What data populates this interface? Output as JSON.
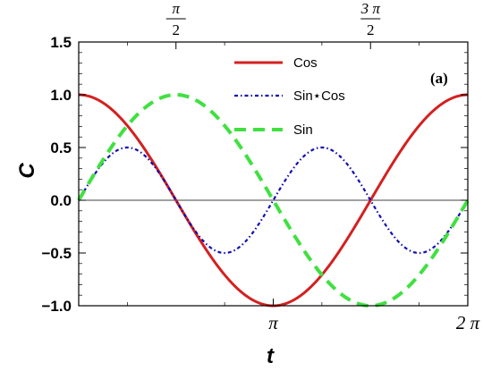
{
  "chart_data": {
    "type": "line",
    "xlabel": "t",
    "ylabel": "C",
    "annotation": "(a)",
    "xlim": [
      0,
      6.2832
    ],
    "ylim": [
      -1.0,
      1.5
    ],
    "yticks": [
      {
        "value": -1.0,
        "label": "−1.0"
      },
      {
        "value": -0.5,
        "label": "−0.5"
      },
      {
        "value": 0.0,
        "label": "0.0"
      },
      {
        "value": 0.5,
        "label": "0.5"
      },
      {
        "value": 1.0,
        "label": "1.0"
      },
      {
        "value": 1.5,
        "label": "1.5"
      }
    ],
    "xticks_bottom": [
      {
        "value": 3.1416,
        "label": "π"
      },
      {
        "value": 6.2832,
        "label": "2 π"
      }
    ],
    "xticks_top": [
      {
        "value": 1.5708,
        "num": "π",
        "den": "2"
      },
      {
        "value": 4.7124,
        "num": "3 π",
        "den": "2"
      }
    ],
    "zero_line": true,
    "grid": false,
    "legend_position": "top-center",
    "series": [
      {
        "name": "Cos",
        "function": "cos",
        "color": "#d42020",
        "style": "solid"
      },
      {
        "name": "Sin⋆Cos",
        "function": "sin*cos",
        "color": "#1010b0",
        "style": "dashdot"
      },
      {
        "name": "Sin",
        "function": "sin",
        "color": "#40e040",
        "style": "dashed"
      }
    ]
  }
}
